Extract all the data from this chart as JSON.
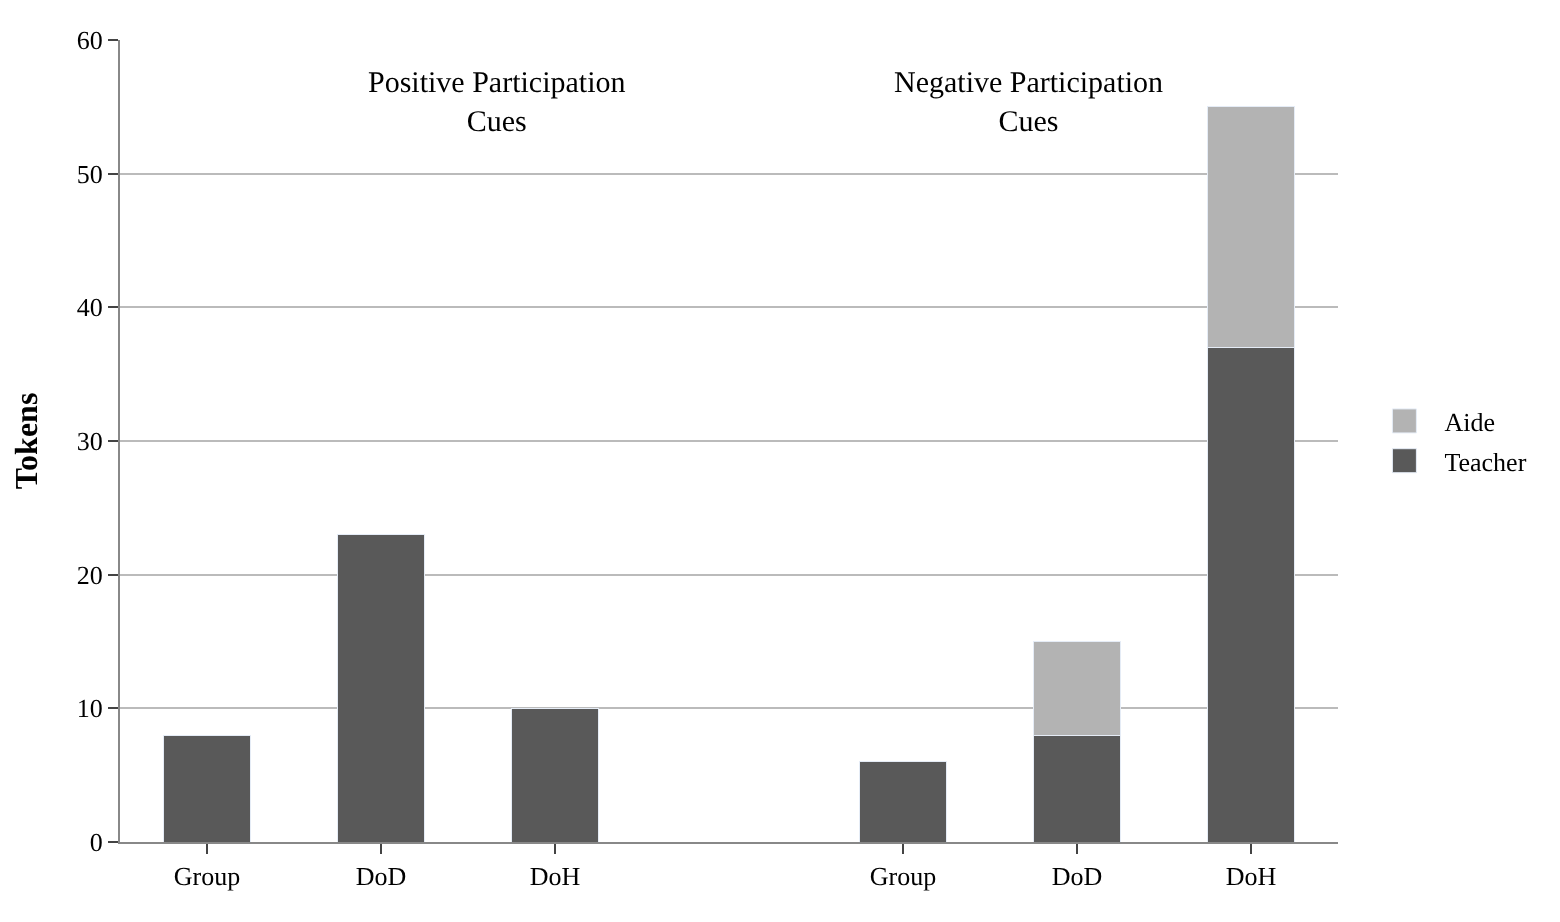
{
  "chart_data": {
    "type": "bar",
    "stacked": true,
    "ylabel": "Tokens",
    "categories": [
      "Group",
      "DoD",
      "DoH",
      null,
      "Group",
      "DoD",
      "DoH"
    ],
    "series": [
      {
        "name": "Teacher",
        "color": "#595959",
        "values": [
          8,
          23,
          10,
          null,
          6,
          8,
          37
        ]
      },
      {
        "name": "Aide",
        "color": "#b3b3b3",
        "values": [
          null,
          null,
          null,
          null,
          null,
          7,
          18
        ]
      }
    ],
    "ylim": [
      0,
      60
    ],
    "yticks": [
      0,
      10,
      20,
      30,
      40,
      50,
      60
    ],
    "grid": "y",
    "legend": "right",
    "annotations": [
      "Positive Participation\nCues",
      "Negative Participation\nCues"
    ]
  }
}
